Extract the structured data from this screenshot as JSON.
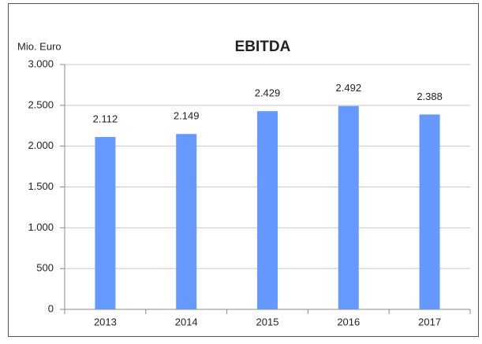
{
  "chart_data": {
    "type": "bar",
    "title": "EBITDA",
    "y_label": "Mio. Euro",
    "categories": [
      "2013",
      "2014",
      "2015",
      "2016",
      "2017"
    ],
    "values": [
      2112,
      2149,
      2429,
      2492,
      2388
    ],
    "value_labels": [
      "2.112",
      "2.149",
      "2.429",
      "2.492",
      "2.388"
    ],
    "color": "#6699ff",
    "ylim": [
      0,
      3000
    ],
    "yticks": [
      0,
      500,
      {
        "value": 1000,
        "label": "1.000"
      },
      {
        "value": 1500,
        "label": "1.500"
      },
      {
        "value": 2000,
        "label": "2.000"
      },
      {
        "value": 2500,
        "label": "2.500"
      },
      {
        "value": 3000,
        "label": "3.000"
      }
    ],
    "grid": true
  }
}
